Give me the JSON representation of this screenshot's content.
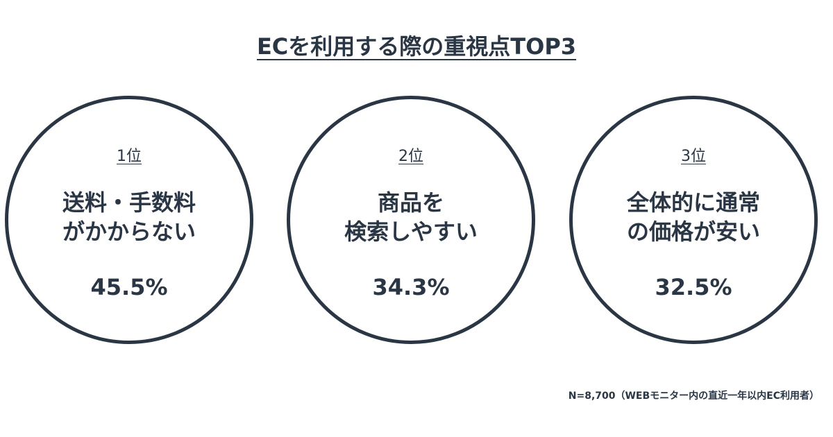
{
  "title": "ECを利用する際の重視点TOP3",
  "items": [
    {
      "rank": "1位",
      "label_line1": "送料・手数料",
      "label_line2": "がかからない",
      "percent": "45.5%"
    },
    {
      "rank": "2位",
      "label_line1": "商品を",
      "label_line2": "検索しやすい",
      "percent": "34.3%"
    },
    {
      "rank": "3位",
      "label_line1": "全体的に通常",
      "label_line2": "の価格が安い",
      "percent": "32.5%"
    }
  ],
  "note": "N=8,700（WEBモニター内の直近一年以内EC利用者）",
  "colors": {
    "text": "#2b3645",
    "circle_border": "#2b3645",
    "background": "#ffffff"
  }
}
